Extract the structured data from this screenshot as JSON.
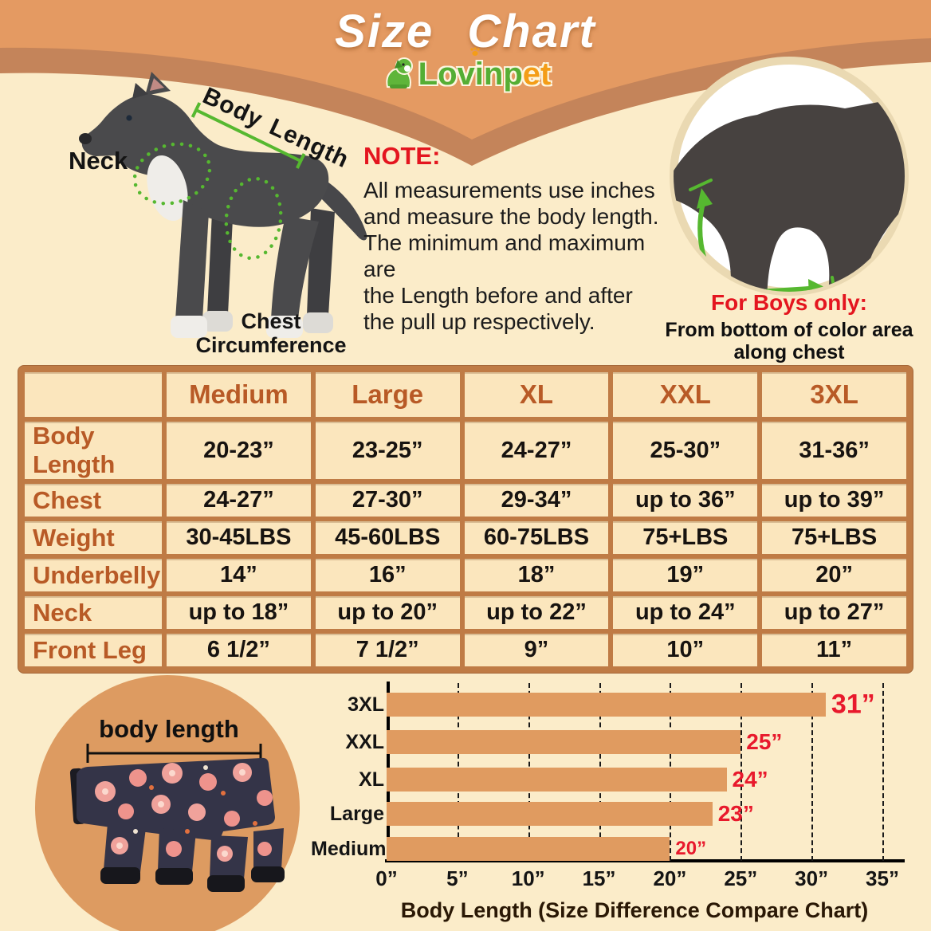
{
  "banner": {
    "title": "Size Chart"
  },
  "logo": {
    "green": "Lovinp",
    "orange": "et"
  },
  "diagram": {
    "neck": "Neck",
    "body_length": "Body Length",
    "chest_line1": "Chest",
    "chest_line2": "Circumference"
  },
  "note": {
    "heading": "NOTE:",
    "lines": [
      "All measurements use inches",
      "and measure the body length.",
      "The minimum and maximum are",
      "the Length before and after",
      "the pull up respectively."
    ]
  },
  "boys": {
    "heading": "For Boys only:",
    "lines": [
      "From bottom of color area",
      "along chest"
    ]
  },
  "size_table": {
    "corner": "",
    "columns": [
      "Medium",
      "Large",
      "XL",
      "XXL",
      "3XL"
    ],
    "rows": [
      {
        "label": "Body Length",
        "values": [
          "20-23”",
          "23-25”",
          "24-27”",
          "25-30”",
          "31-36”"
        ]
      },
      {
        "label": "Chest",
        "values": [
          "24-27”",
          "27-30”",
          "29-34”",
          "up to 36”",
          "up to 39”"
        ]
      },
      {
        "label": "Weight",
        "values": [
          "30-45LBS",
          "45-60LBS",
          "60-75LBS",
          "75+LBS",
          "75+LBS"
        ]
      },
      {
        "label": "Underbelly",
        "values": [
          "14”",
          "16”",
          "18”",
          "19”",
          "20”"
        ]
      },
      {
        "label": "Neck",
        "values": [
          "up to 18”",
          "up to 20”",
          "up to 22”",
          "up to 24”",
          "up to 27”"
        ]
      },
      {
        "label": "Front Leg",
        "values": [
          "6 1/2”",
          "7 1/2”",
          "9”",
          "10”",
          "11”"
        ]
      }
    ]
  },
  "pajama": {
    "label": "body length"
  },
  "chart_data": {
    "type": "bar",
    "orientation": "horizontal",
    "categories": [
      "3XL",
      "XXL",
      "XL",
      "Large",
      "Medium"
    ],
    "values": [
      31,
      25,
      24,
      23,
      20
    ],
    "value_labels": [
      "31”",
      "25”",
      "24”",
      "23”",
      "20”"
    ],
    "xlim": [
      0,
      35
    ],
    "xtick_interval": 5,
    "xtick_labels": [
      "0”",
      "5”",
      "10”",
      "15”",
      "20”",
      "25”",
      "30”",
      "35”"
    ],
    "xlabel": "Body Length （Size Difference Compare Chart）",
    "xlabel_ascii": "Body Length  (Size Difference Compare Chart)",
    "grid": "vertical-dashed",
    "bar_color": "#E09B60",
    "value_label_color": "#E8192C"
  },
  "colors": {
    "background": "#FBECC9",
    "banner_orange": "#E49A62",
    "banner_brown": "#C4845A",
    "table_frame": "#BF7B45",
    "table_cell": "#FBE6BD",
    "label_brown": "#B85A26",
    "accent_red": "#E4151F",
    "annotation_green": "#56B830"
  }
}
